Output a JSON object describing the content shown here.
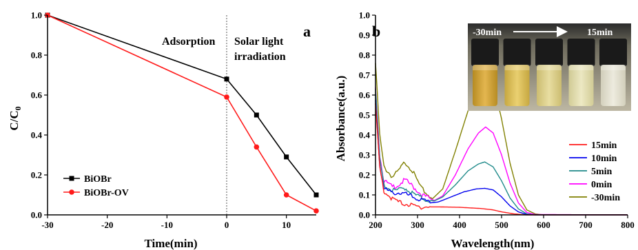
{
  "chart_data": [
    {
      "type": "line",
      "panel_label": "a",
      "xlabel": "Time(min)",
      "ylabel_main": "C/C",
      "ylabel_sub": "0",
      "xlim": [
        -30,
        15
      ],
      "ylim": [
        0,
        1.0
      ],
      "xticks": [
        -30,
        -20,
        -10,
        0,
        10
      ],
      "xtick_labels": [
        "-30",
        "-20",
        "-10",
        "0",
        "10"
      ],
      "yticks": [
        0,
        0.2,
        0.4,
        0.6,
        0.8,
        1.0
      ],
      "ytick_labels": [
        "0.0",
        "0.2",
        "0.4",
        "0.6",
        "0.8",
        "1.0"
      ],
      "annotations": [
        {
          "text": "Adsorption",
          "x": -15.5,
          "y": 0.91
        },
        {
          "text": "Solar light",
          "x": 1.0,
          "y": 0.91
        },
        {
          "text": "irradiation",
          "x": 1.0,
          "y": 0.84
        }
      ],
      "divider_x": 0,
      "legend_position": "bottom-left",
      "series": [
        {
          "name": "BiOBr",
          "color": "#000000",
          "marker": "square",
          "points": [
            [
              -30,
              1.0
            ],
            [
              0,
              0.68
            ],
            [
              5,
              0.5
            ],
            [
              10,
              0.29
            ],
            [
              15,
              0.1
            ]
          ]
        },
        {
          "name": "BiOBr-OV",
          "color": "#ff1a1a",
          "marker": "circle",
          "points": [
            [
              -30,
              1.0
            ],
            [
              0,
              0.59
            ],
            [
              5,
              0.34
            ],
            [
              10,
              0.1
            ],
            [
              15,
              0.02
            ]
          ]
        }
      ]
    },
    {
      "type": "line",
      "panel_label": "b",
      "xlabel": "Wavelength(nm)",
      "ylabel": "Absorbance(a.u.)",
      "xlim": [
        200,
        800
      ],
      "ylim": [
        0,
        1.0
      ],
      "xticks": [
        200,
        300,
        400,
        500,
        600,
        700,
        800
      ],
      "xtick_labels": [
        "200",
        "300",
        "400",
        "500",
        "600",
        "700",
        "800"
      ],
      "yticks": [
        0,
        0.1,
        0.2,
        0.3,
        0.4,
        0.5,
        0.6,
        0.7,
        0.8,
        0.9,
        1.0
      ],
      "ytick_labels": [
        "0.0",
        "0.1",
        "0.2",
        "0.3",
        "0.4",
        "0.5",
        "0.6",
        "0.7",
        "0.8",
        "0.9",
        "1.0"
      ],
      "inset": {
        "arrow_start": "-30min",
        "arrow_end": "15min",
        "vials": 5
      },
      "legend_position": "right",
      "series": [
        {
          "name": "15min",
          "color": "#ff1a1a",
          "points": [
            [
              200,
              0.55
            ],
            [
              210,
              0.24
            ],
            [
              220,
              0.12
            ],
            [
              240,
              0.08
            ],
            [
              260,
              0.06
            ],
            [
              300,
              0.04
            ],
            [
              350,
              0.04
            ],
            [
              400,
              0.038
            ],
            [
              450,
              0.032
            ],
            [
              480,
              0.025
            ],
            [
              500,
              0.015
            ],
            [
              530,
              0.005
            ],
            [
              560,
              0.0
            ],
            [
              800,
              0.0
            ]
          ]
        },
        {
          "name": "10min",
          "color": "#0000ee",
          "points": [
            [
              200,
              0.58
            ],
            [
              210,
              0.25
            ],
            [
              220,
              0.13
            ],
            [
              240,
              0.11
            ],
            [
              255,
              0.11
            ],
            [
              270,
              0.105
            ],
            [
              300,
              0.08
            ],
            [
              330,
              0.06
            ],
            [
              350,
              0.065
            ],
            [
              380,
              0.09
            ],
            [
              410,
              0.115
            ],
            [
              440,
              0.13
            ],
            [
              460,
              0.133
            ],
            [
              480,
              0.125
            ],
            [
              500,
              0.09
            ],
            [
              520,
              0.045
            ],
            [
              540,
              0.015
            ],
            [
              560,
              0.002
            ],
            [
              580,
              0.0
            ],
            [
              800,
              0.0
            ]
          ]
        },
        {
          "name": "5min",
          "color": "#1f8a8a",
          "points": [
            [
              200,
              0.62
            ],
            [
              210,
              0.28
            ],
            [
              220,
              0.15
            ],
            [
              240,
              0.12
            ],
            [
              255,
              0.125
            ],
            [
              270,
              0.135
            ],
            [
              290,
              0.105
            ],
            [
              320,
              0.075
            ],
            [
              340,
              0.07
            ],
            [
              360,
              0.09
            ],
            [
              390,
              0.15
            ],
            [
              420,
              0.22
            ],
            [
              445,
              0.255
            ],
            [
              460,
              0.265
            ],
            [
              480,
              0.24
            ],
            [
              500,
              0.17
            ],
            [
              520,
              0.085
            ],
            [
              540,
              0.03
            ],
            [
              560,
              0.005
            ],
            [
              580,
              0.0
            ],
            [
              800,
              0.0
            ]
          ]
        },
        {
          "name": "0min",
          "color": "#ff00ff",
          "points": [
            [
              200,
              0.65
            ],
            [
              210,
              0.3
            ],
            [
              220,
              0.17
            ],
            [
              240,
              0.14
            ],
            [
              255,
              0.15
            ],
            [
              270,
              0.175
            ],
            [
              285,
              0.15
            ],
            [
              310,
              0.1
            ],
            [
              340,
              0.072
            ],
            [
              360,
              0.095
            ],
            [
              390,
              0.2
            ],
            [
              420,
              0.33
            ],
            [
              445,
              0.41
            ],
            [
              462,
              0.44
            ],
            [
              480,
              0.41
            ],
            [
              500,
              0.3
            ],
            [
              520,
              0.16
            ],
            [
              540,
              0.06
            ],
            [
              560,
              0.012
            ],
            [
              580,
              0.002
            ],
            [
              800,
              0.0
            ]
          ]
        },
        {
          "name": "-30min",
          "color": "#808000",
          "points": [
            [
              200,
              0.76
            ],
            [
              210,
              0.4
            ],
            [
              220,
              0.24
            ],
            [
              240,
              0.19
            ],
            [
              255,
              0.22
            ],
            [
              270,
              0.265
            ],
            [
              285,
              0.23
            ],
            [
              310,
              0.13
            ],
            [
              335,
              0.08
            ],
            [
              360,
              0.13
            ],
            [
              390,
              0.32
            ],
            [
              420,
              0.52
            ],
            [
              445,
              0.66
            ],
            [
              462,
              0.71
            ],
            [
              480,
              0.66
            ],
            [
              500,
              0.48
            ],
            [
              520,
              0.26
            ],
            [
              540,
              0.1
            ],
            [
              560,
              0.025
            ],
            [
              580,
              0.005
            ],
            [
              600,
              0.0
            ],
            [
              800,
              0.0
            ]
          ]
        }
      ]
    }
  ]
}
